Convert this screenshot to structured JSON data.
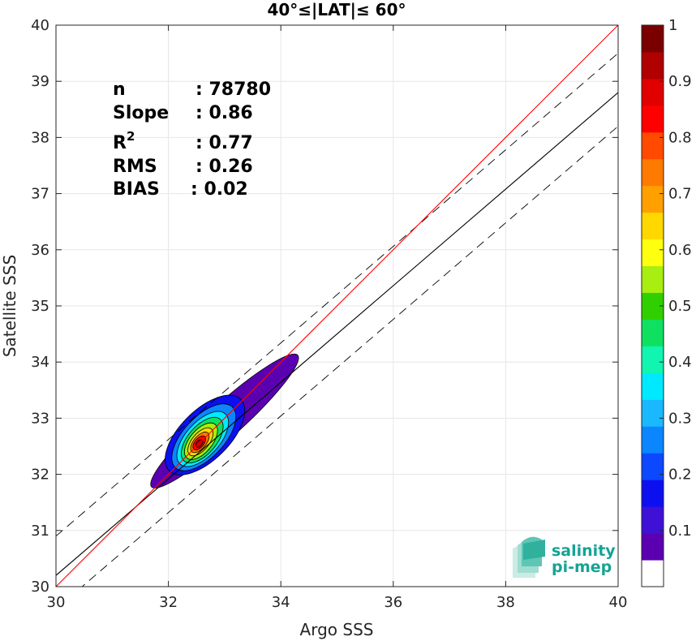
{
  "chart_data": {
    "type": "density-scatter",
    "title": "40°≤|LAT|≤ 60°",
    "xlabel": "Argo SSS",
    "ylabel": "Satellite SSS",
    "xlim": [
      30,
      40
    ],
    "ylim": [
      30,
      40
    ],
    "xticks": [
      "30",
      "32",
      "34",
      "36",
      "38",
      "40"
    ],
    "yticks": [
      "30",
      "31",
      "32",
      "33",
      "34",
      "35",
      "36",
      "37",
      "38",
      "39",
      "40"
    ],
    "grid": true,
    "stats": {
      "n_label": "n",
      "n_value": ": 78780",
      "slope_label": "Slope",
      "slope_value": ": 0.86",
      "r2_label": "R",
      "r2_sup": "2",
      "r2_value": ": 0.77",
      "rms_label": "RMS",
      "rms_value": ": 0.26",
      "bias_label": "BIAS",
      "bias_value": ": 0.02"
    },
    "lines": {
      "identity": {
        "slope": 1.0,
        "intercept": 0.0,
        "color": "#ff0000"
      },
      "regression": {
        "slope": 0.86,
        "intercept": 4.4,
        "color": "#000000"
      },
      "offset_plus": {
        "slope": 0.86,
        "intercept": 5.1,
        "color": "#000000",
        "style": "dashed"
      },
      "offset_minus": {
        "slope": 0.86,
        "intercept": 3.8,
        "color": "#000000",
        "style": "dashed"
      }
    },
    "density": {
      "peak_x": 32.55,
      "peak_y": 32.55,
      "levels": [
        {
          "level": 0.05,
          "cx": 33.0,
          "cy": 32.95,
          "rx": 1.75,
          "ry": 0.3,
          "angle_deg": 42
        },
        {
          "level": 0.15,
          "cx": 32.65,
          "cy": 32.7,
          "rx": 0.9,
          "ry": 0.44,
          "angle_deg": 45
        },
        {
          "level": 0.25,
          "cx": 32.63,
          "cy": 32.66,
          "rx": 0.74,
          "ry": 0.36,
          "angle_deg": 47
        },
        {
          "level": 0.35,
          "cx": 32.61,
          "cy": 32.63,
          "rx": 0.6,
          "ry": 0.3,
          "angle_deg": 48
        },
        {
          "level": 0.45,
          "cx": 32.6,
          "cy": 32.61,
          "rx": 0.49,
          "ry": 0.25,
          "angle_deg": 49
        },
        {
          "level": 0.55,
          "cx": 32.58,
          "cy": 32.59,
          "rx": 0.39,
          "ry": 0.2,
          "angle_deg": 50
        },
        {
          "level": 0.65,
          "cx": 32.57,
          "cy": 32.58,
          "rx": 0.3,
          "ry": 0.15,
          "angle_deg": 50
        },
        {
          "level": 0.75,
          "cx": 32.56,
          "cy": 32.57,
          "rx": 0.22,
          "ry": 0.11,
          "angle_deg": 50
        },
        {
          "level": 0.85,
          "cx": 32.55,
          "cy": 32.56,
          "rx": 0.15,
          "ry": 0.08,
          "angle_deg": 50
        },
        {
          "level": 0.95,
          "cx": 32.55,
          "cy": 32.55,
          "rx": 0.08,
          "ry": 0.05,
          "angle_deg": 50
        }
      ]
    },
    "colorbar": {
      "min": 0,
      "max": 1,
      "ticks": [
        "0.1",
        "0.2",
        "0.3",
        "0.4",
        "0.5",
        "0.6",
        "0.7",
        "0.8",
        "0.9",
        "1"
      ],
      "tick_values": [
        0.1,
        0.2,
        0.3,
        0.4,
        0.5,
        0.6,
        0.7,
        0.8,
        0.9,
        1.0
      ],
      "colors": [
        "#ffffff",
        "#5a00b0",
        "#3f10d6",
        "#0c10f0",
        "#0b48ff",
        "#0b86ff",
        "#19b8ff",
        "#00eaff",
        "#10f5b0",
        "#10e060",
        "#30d000",
        "#a8ee10",
        "#ffff10",
        "#ffd800",
        "#ffa000",
        "#ff7a00",
        "#ff4a00",
        "#ff0000",
        "#e00000",
        "#b00000",
        "#7a0000"
      ]
    }
  },
  "logo": {
    "line1": "salinity",
    "line2": "pi-mep",
    "color": "#16a394"
  }
}
